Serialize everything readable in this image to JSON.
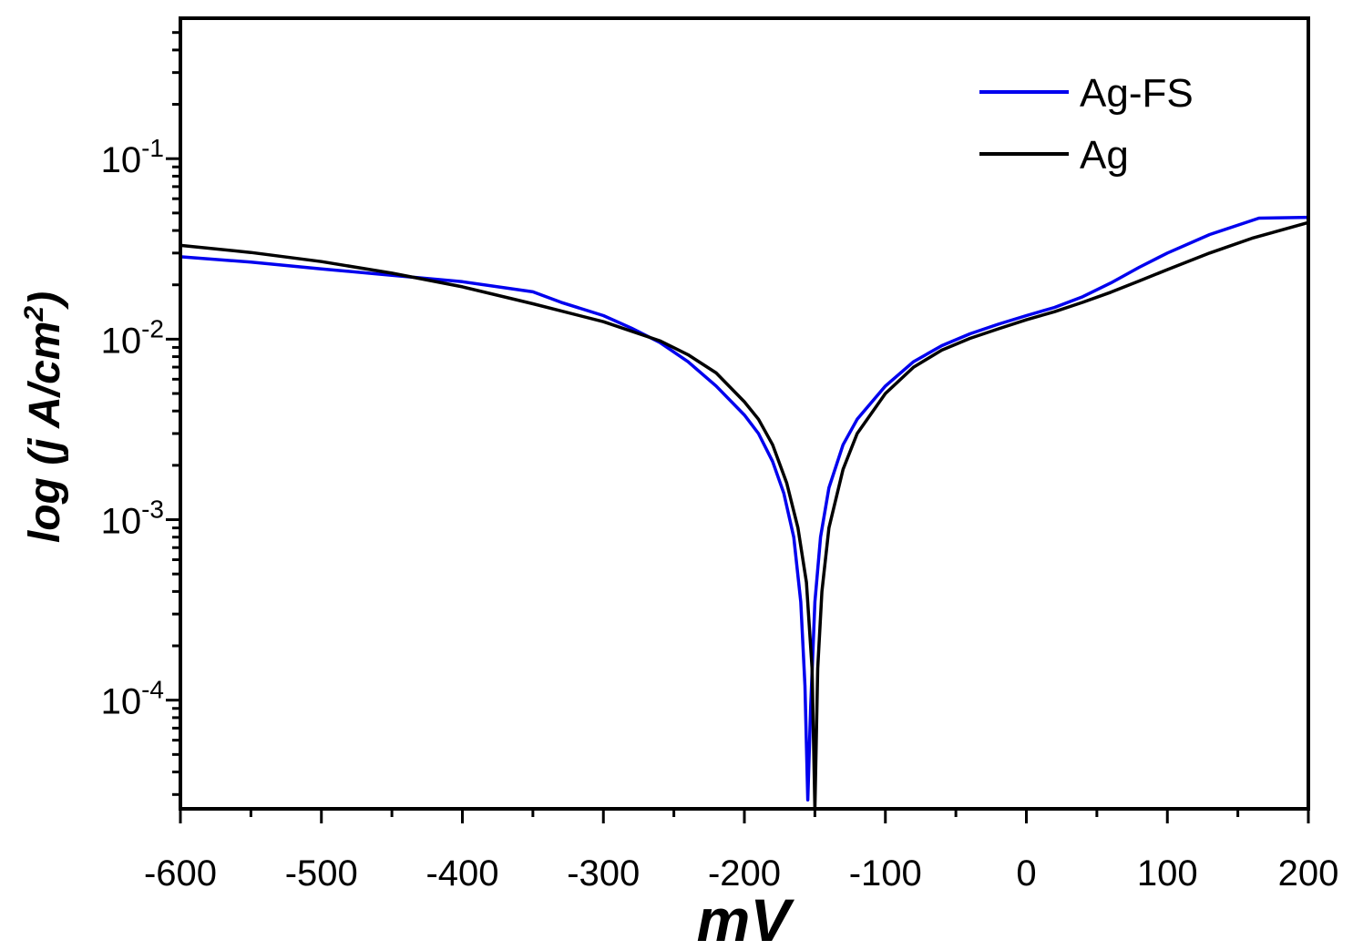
{
  "chart_data": {
    "type": "line",
    "title": "",
    "xlabel": "mV",
    "ylabel": "log (j A/cm",
    "ylabel_sup": "2",
    "ylabel_end": ")",
    "xlim": [
      -600,
      200
    ],
    "ylim": [
      2.5e-05,
      0.6
    ],
    "yscale": "log",
    "x_ticks": [
      -600,
      -500,
      -400,
      -300,
      -200,
      -100,
      0,
      100,
      200
    ],
    "x_tick_labels": [
      "-600",
      "-500",
      "-400",
      "-300",
      "-200",
      "-100",
      "0",
      "100",
      "200"
    ],
    "y_ticks": [
      {
        "value": 0.1,
        "base": "10",
        "exp": "-1"
      },
      {
        "value": 0.01,
        "base": "10",
        "exp": "-2"
      },
      {
        "value": 0.001,
        "base": "10",
        "exp": "-3"
      },
      {
        "value": 0.0001,
        "base": "10",
        "exp": "-4"
      }
    ],
    "legend_position": "top-right",
    "series": [
      {
        "name": "Ag-FS",
        "color": "#0000ee",
        "points": [
          [
            -600,
            0.0286
          ],
          [
            -550,
            0.0267
          ],
          [
            -500,
            0.0245
          ],
          [
            -450,
            0.0226
          ],
          [
            -400,
            0.0208
          ],
          [
            -350,
            0.0183
          ],
          [
            -330,
            0.016
          ],
          [
            -300,
            0.0135
          ],
          [
            -280,
            0.0115
          ],
          [
            -260,
            0.0096
          ],
          [
            -240,
            0.0075
          ],
          [
            -220,
            0.0055
          ],
          [
            -200,
            0.0038
          ],
          [
            -190,
            0.003
          ],
          [
            -180,
            0.0021
          ],
          [
            -172,
            0.0014
          ],
          [
            -165,
            0.0008
          ],
          [
            -160,
            0.00035
          ],
          [
            -157,
            0.00012
          ],
          [
            -155,
            2.8e-05
          ],
          [
            -153,
            9e-05
          ],
          [
            -150,
            0.00035
          ],
          [
            -146,
            0.0008
          ],
          [
            -140,
            0.0015
          ],
          [
            -130,
            0.0026
          ],
          [
            -120,
            0.0036
          ],
          [
            -100,
            0.0055
          ],
          [
            -80,
            0.0075
          ],
          [
            -60,
            0.0092
          ],
          [
            -40,
            0.0107
          ],
          [
            -20,
            0.0121
          ],
          [
            0,
            0.0135
          ],
          [
            20,
            0.015
          ],
          [
            40,
            0.0172
          ],
          [
            60,
            0.0205
          ],
          [
            80,
            0.025
          ],
          [
            100,
            0.03
          ],
          [
            130,
            0.038
          ],
          [
            165,
            0.0468
          ],
          [
            200,
            0.0473
          ]
        ]
      },
      {
        "name": "Ag",
        "color": "#000000",
        "points": [
          [
            -600,
            0.0331
          ],
          [
            -550,
            0.0302
          ],
          [
            -500,
            0.0269
          ],
          [
            -450,
            0.0232
          ],
          [
            -400,
            0.0195
          ],
          [
            -350,
            0.0157
          ],
          [
            -300,
            0.0125
          ],
          [
            -260,
            0.0098
          ],
          [
            -240,
            0.0082
          ],
          [
            -220,
            0.0065
          ],
          [
            -200,
            0.0045
          ],
          [
            -190,
            0.0036
          ],
          [
            -180,
            0.0026
          ],
          [
            -170,
            0.0016
          ],
          [
            -162,
            0.0009
          ],
          [
            -156,
            0.00045
          ],
          [
            -152,
            0.00015
          ],
          [
            -150,
            2.5e-05
          ],
          [
            -148,
            0.00015
          ],
          [
            -145,
            0.0004
          ],
          [
            -140,
            0.0009
          ],
          [
            -130,
            0.0019
          ],
          [
            -120,
            0.003
          ],
          [
            -100,
            0.005
          ],
          [
            -80,
            0.007
          ],
          [
            -60,
            0.0087
          ],
          [
            -40,
            0.0101
          ],
          [
            -20,
            0.0114
          ],
          [
            0,
            0.0128
          ],
          [
            20,
            0.0142
          ],
          [
            40,
            0.016
          ],
          [
            60,
            0.0182
          ],
          [
            80,
            0.021
          ],
          [
            100,
            0.0243
          ],
          [
            130,
            0.03
          ],
          [
            160,
            0.0362
          ],
          [
            200,
            0.0443
          ]
        ]
      }
    ]
  }
}
